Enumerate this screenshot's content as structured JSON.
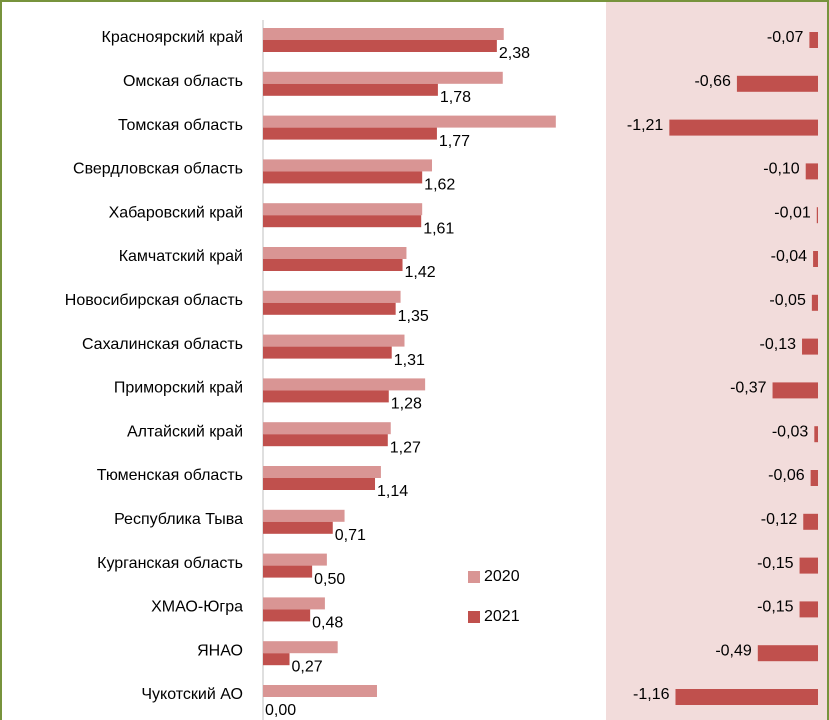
{
  "chart_data": [
    {
      "type": "hbar",
      "categories": [
        "Красноярский край",
        "Омская область",
        "Томская область",
        "Свердловская область",
        "Хабаровский край",
        "Камчатский край",
        "Новосибирская область",
        "Сахалинская область",
        "Приморский край",
        "Алтайский край",
        "Тюменская область",
        "Республика Тыва",
        "Курганская область",
        "ХМАО-Югра",
        "ЯНАО",
        "Чукотский АО"
      ],
      "series": [
        {
          "name": "2020",
          "color": "#d99594",
          "values": [
            2.45,
            2.44,
            2.98,
            1.72,
            1.62,
            1.46,
            1.4,
            1.44,
            1.65,
            1.3,
            1.2,
            0.83,
            0.65,
            0.63,
            0.76,
            1.16
          ]
        },
        {
          "name": "2021",
          "color": "#c0504d",
          "values": [
            2.38,
            1.78,
            1.77,
            1.62,
            1.61,
            1.42,
            1.35,
            1.31,
            1.28,
            1.27,
            1.14,
            0.71,
            0.5,
            0.48,
            0.27,
            0.0
          ],
          "value_labels": [
            "2,38",
            "1,78",
            "1,77",
            "1,62",
            "1,61",
            "1,42",
            "1,35",
            "1,31",
            "1,28",
            "1,27",
            "1,14",
            "0,71",
            "0,50",
            "0,48",
            "0,27",
            "0,00"
          ]
        }
      ],
      "xlim": [
        0,
        3.45
      ]
    },
    {
      "type": "hbar",
      "color": "#c0504d",
      "values": [
        -0.07,
        -0.66,
        -1.21,
        -0.1,
        -0.01,
        -0.04,
        -0.05,
        -0.13,
        -0.37,
        -0.03,
        -0.06,
        -0.12,
        -0.15,
        -0.15,
        -0.49,
        -1.16
      ],
      "value_labels": [
        "-0,07",
        "-0,66",
        "-1,21",
        "-0,10",
        "-0,01",
        "-0,04",
        "-0,05",
        "-0,13",
        "-0,37",
        "-0,03",
        "-0,06",
        "-0,12",
        "-0,15",
        "-0,15",
        "-0,49",
        "-1,16"
      ],
      "xlim": [
        -1.4,
        0
      ]
    }
  ]
}
